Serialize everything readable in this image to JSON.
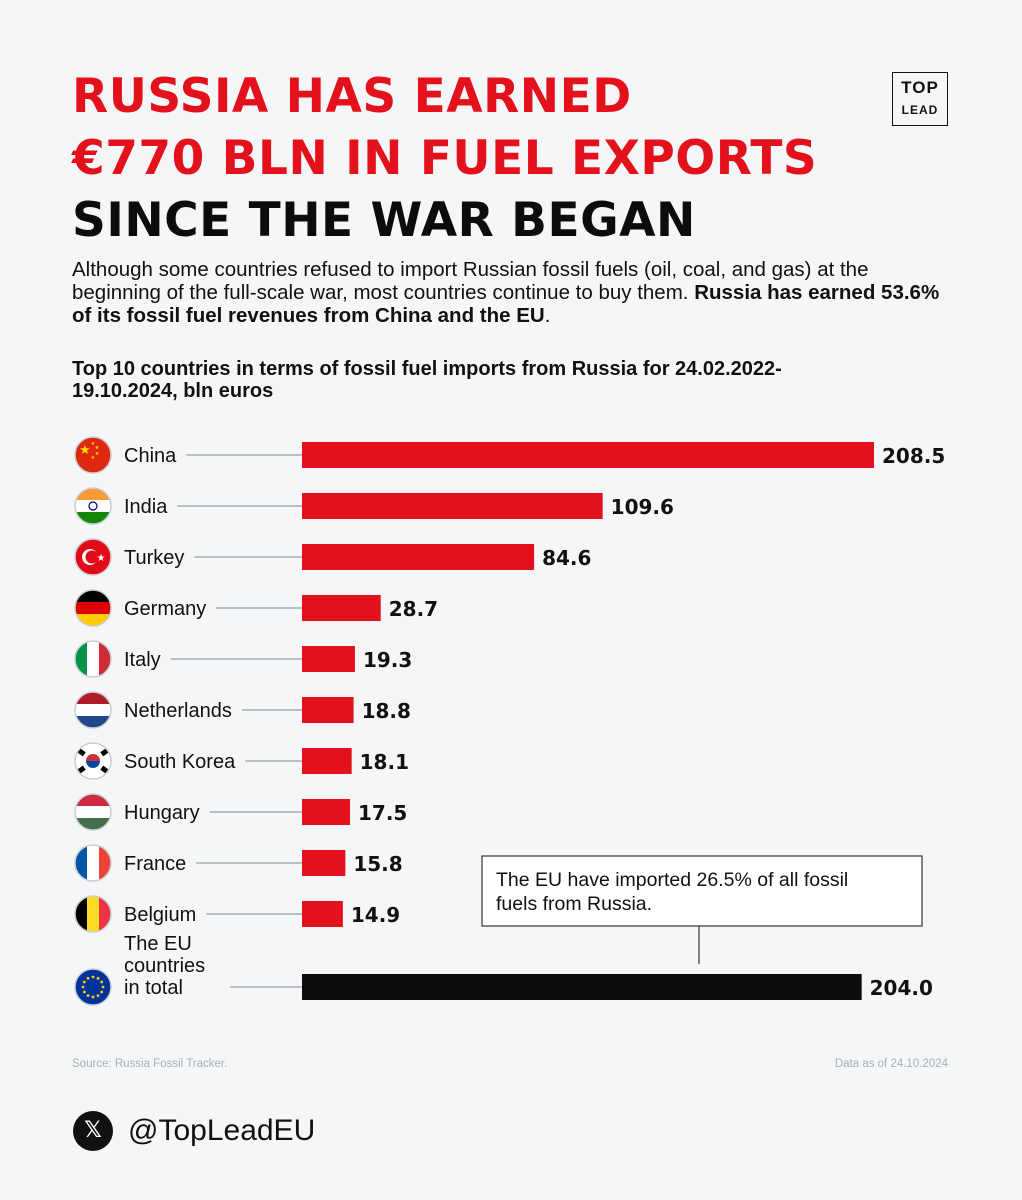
{
  "headline": {
    "line1": "RUSSIA HAS EARNED",
    "line2": "€770 BLN IN FUEL EXPORTS",
    "line3": "SINCE THE WAR BEGAN"
  },
  "logo": {
    "top": "TOP",
    "bottom": "LEAD"
  },
  "intro": {
    "text": "Although some countries refused to import Russian fossil fuels (oil, coal, and gas) at the beginning of the full-scale war, most countries continue to buy them.",
    "bold": "Russia has earned 53.6% of its fossil fuel revenues from China and the EU",
    "end": "."
  },
  "chart_data": {
    "type": "bar",
    "orientation": "horizontal",
    "title": "Top 10 countries in terms of fossil fuel imports from Russia for 24.02.2022-19.10.2024, bln euros",
    "categories": [
      "China",
      "India",
      "Turkey",
      "Germany",
      "Italy",
      "Netherlands",
      "South Korea",
      "Hungary",
      "France",
      "Belgium",
      "The EU countries in total"
    ],
    "values": [
      208.5,
      109.6,
      84.6,
      28.7,
      19.3,
      18.8,
      18.1,
      17.5,
      15.8,
      14.9,
      204.0
    ],
    "value_labels": [
      "208.5",
      "109.6",
      "84.6",
      "28.7",
      "19.3",
      "18.8",
      "18.1",
      "17.5",
      "15.8",
      "14.9",
      "204.0"
    ],
    "bar_colors": [
      "#e3111b",
      "#e3111b",
      "#e3111b",
      "#e3111b",
      "#e3111b",
      "#e3111b",
      "#e3111b",
      "#e3111b",
      "#e3111b",
      "#e3111b",
      "#0c0c0c"
    ],
    "flags": [
      "china-flag-icon",
      "india-flag-icon",
      "turkey-flag-icon",
      "germany-flag-icon",
      "italy-flag-icon",
      "netherlands-flag-icon",
      "south-korea-flag-icon",
      "hungary-flag-icon",
      "france-flag-icon",
      "belgium-flag-icon",
      "eu-flag-icon"
    ],
    "annotation": "The EU have imported 26.5% of all fossil fuels from Russia.",
    "xlim": [
      0,
      208.5
    ],
    "grid": false,
    "legend": "none"
  },
  "footer": {
    "source": "Source: Russia Fossil Tracker.",
    "date": "Data as of 24.10.2024",
    "handle": "@TopLeadEU",
    "social_icon": "x-icon"
  }
}
